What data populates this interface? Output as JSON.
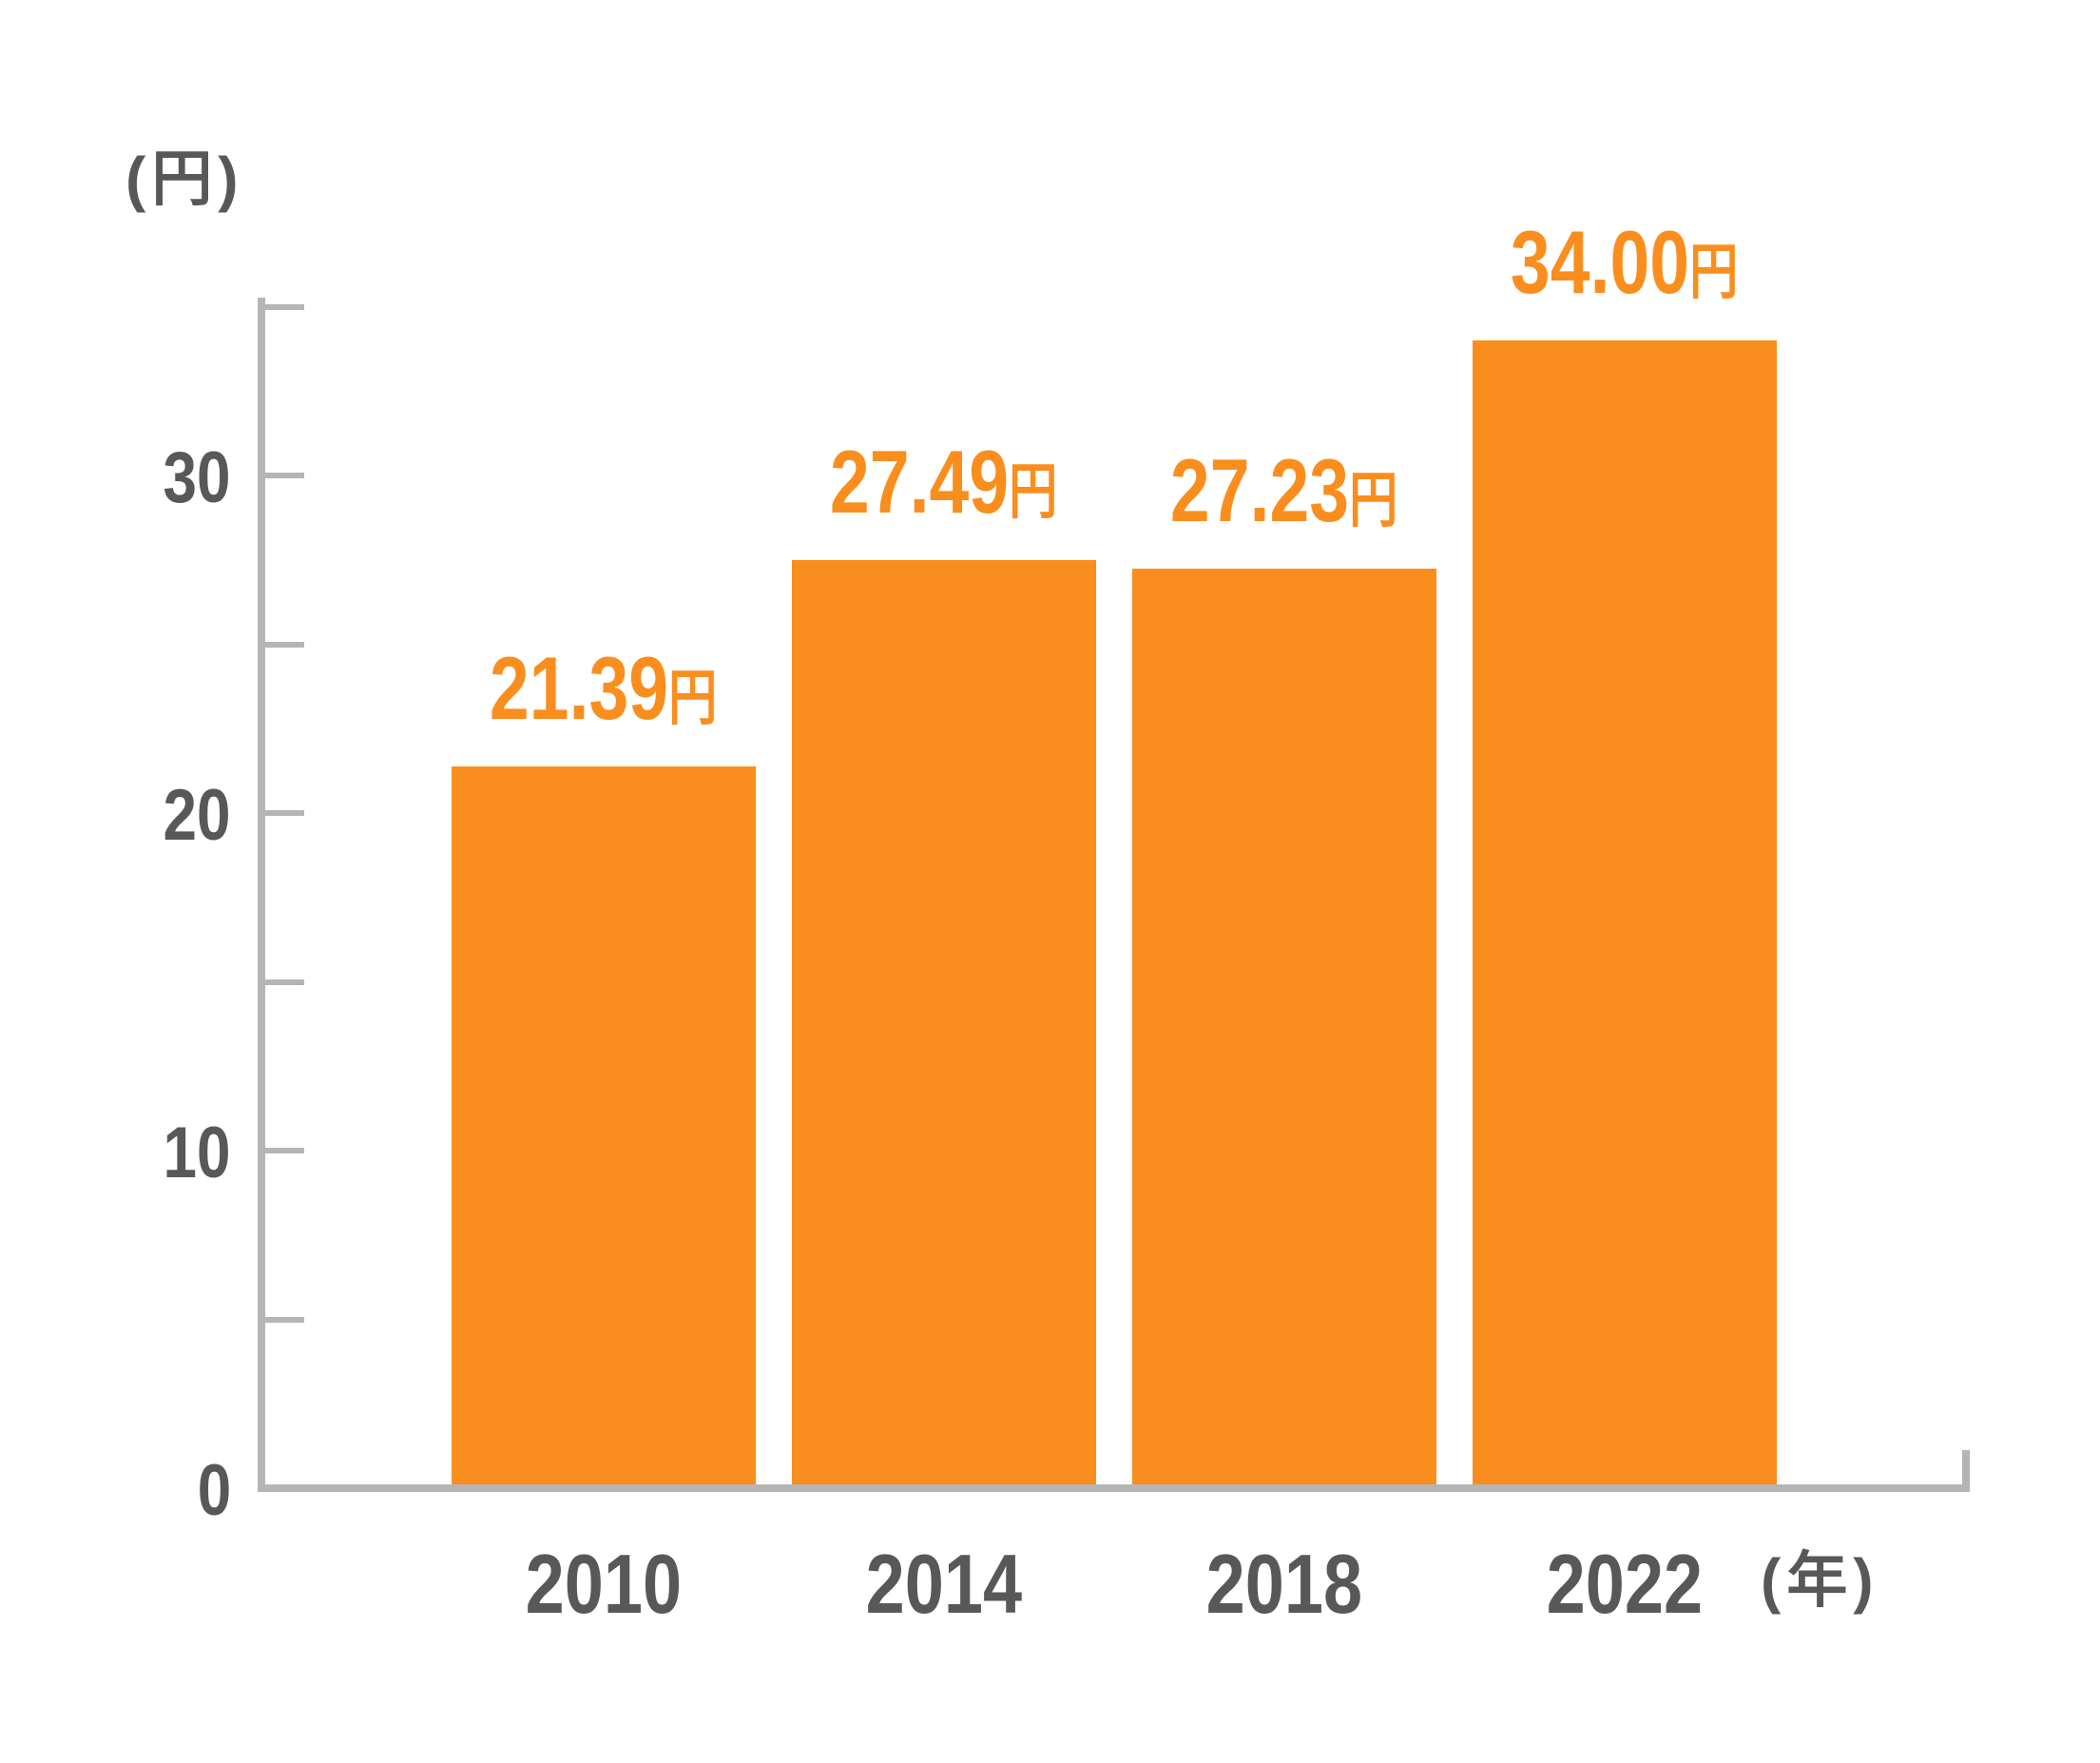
{
  "chart_data": {
    "type": "bar",
    "title": "",
    "categories": [
      "2010",
      "2014",
      "2018",
      "2022"
    ],
    "values": [
      21.39,
      27.49,
      27.23,
      34.0
    ],
    "value_labels": [
      "21.39円",
      "27.49円",
      "27.23円",
      "34.00円"
    ],
    "value_decimals": 2,
    "value_unit": "円",
    "xlabel": "",
    "ylabel": "",
    "x_axis": {
      "unit_label": "(年)"
    },
    "y_axis": {
      "unit_label": "(円)",
      "tick_labels": [
        "0",
        "10",
        "20",
        "30"
      ],
      "tick_values": [
        0,
        10,
        20,
        30
      ],
      "minor_tick_step": 5,
      "range": [
        0,
        35
      ]
    },
    "grid": false,
    "legend": false,
    "colors": {
      "bar": "#f98e1e",
      "value_text": "#f98e1e",
      "axis": "#b5b5b6",
      "label_text": "#595757",
      "background": "#ffffff"
    }
  }
}
